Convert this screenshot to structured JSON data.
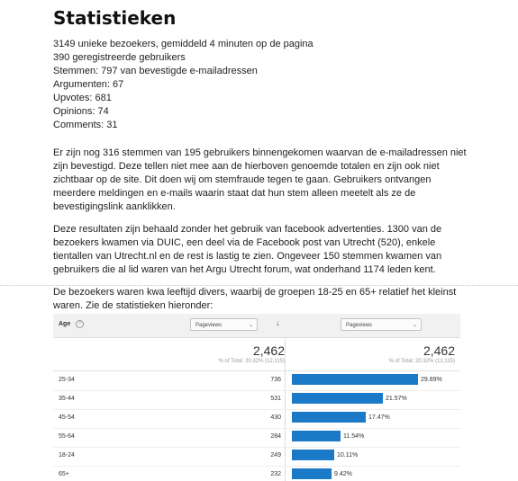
{
  "title": "Statistieken",
  "stats": [
    "3149 unieke bezoekers, gemiddeld 4 minuten op de pagina",
    "390 geregistreerde gebruikers",
    "Stemmen: 797 van bevestigde e-mailadressen",
    "Argumenten: 67",
    "Upvotes: 681",
    "Opinions: 74",
    "Comments: 31"
  ],
  "paragraphs": [
    "Er zijn nog 316 stemmen van 195 gebruikers binnengekomen waarvan de e-mailadressen niet zijn bevestigd. Deze tellen niet mee aan de hierboven genoemde totalen en zijn ook niet zichtbaar op de site. Dit doen wij om stemfraude tegen te gaan. Gebruikers ontvangen meerdere meldingen en e-mails waarin staat dat hun stem alleen meetelt als ze de bevestigingslink aanklikken.",
    "Deze resultaten zijn behaald zonder het gebruik van facebook advertenties. 1300 van de bezoekers kwamen via DUIC, een deel via de Facebook post van Utrecht (520), enkele tientallen van Utrecht.nl en de rest is lastig te zien. Ongeveer 150 stemmen kwamen van gebruikers die al lid waren van het Argu Utrecht forum, wat onderhand 1174 leden kent.",
    "De bezoekers waren kwa leeftijd divers, waarbij de groepen 18-25 en 65+ relatief het kleinst waren. Zie de statistieken hieronder:"
  ],
  "table": {
    "dimension_label": "Age",
    "info_glyph": "?",
    "metric_1_label": "Pageviews",
    "metric_2_label": "Pageviews",
    "sort_glyph": "↓",
    "chevron_glyph": "⌄",
    "total_1": "2,462",
    "total_1_sub": "% of Total: 20.32% (12,115)",
    "total_2": "2,462",
    "total_2_sub": "% of Total: 20.32% (12,115)",
    "bar_color": "#1b7ac7",
    "rows": [
      {
        "age": "25-34",
        "pageviews": "736",
        "pct": "29.89%",
        "share": 29.89
      },
      {
        "age": "35-44",
        "pageviews": "531",
        "pct": "21.57%",
        "share": 21.57
      },
      {
        "age": "45-54",
        "pageviews": "430",
        "pct": "17.47%",
        "share": 17.47
      },
      {
        "age": "55-64",
        "pageviews": "284",
        "pct": "11.54%",
        "share": 11.54
      },
      {
        "age": "18-24",
        "pageviews": "249",
        "pct": "10.11%",
        "share": 10.11
      },
      {
        "age": "65+",
        "pageviews": "232",
        "pct": "9.42%",
        "share": 9.42
      }
    ]
  }
}
